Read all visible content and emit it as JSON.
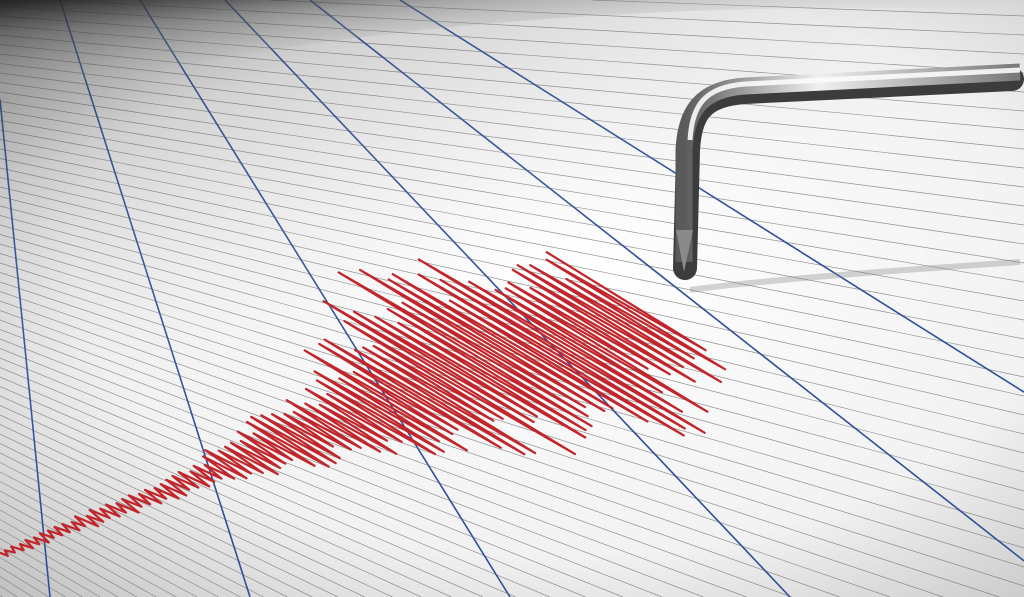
{
  "scene": {
    "subject": "seismograph",
    "colors": {
      "paper": "#f4f4f4",
      "grid_line": "#6f6f6f",
      "major_line": "#2f4f9a",
      "trace": "#c0262b",
      "needle_light": "#e8e8e8",
      "needle_dark": "#5a5a5a",
      "shadow": "#2a2a2a"
    }
  }
}
